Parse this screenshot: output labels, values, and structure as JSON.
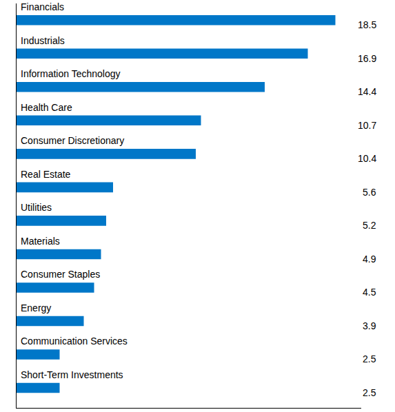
{
  "chart_data": {
    "type": "bar",
    "orientation": "horizontal",
    "categories": [
      "Financials",
      "Industrials",
      "Information Technology",
      "Health Care",
      "Consumer Discretionary",
      "Real Estate",
      "Utilities",
      "Materials",
      "Consumer Staples",
      "Energy",
      "Communication Services",
      "Short-Term Investments"
    ],
    "values": [
      18.5,
      16.9,
      14.4,
      10.7,
      10.4,
      5.6,
      5.2,
      4.9,
      4.5,
      3.9,
      2.5,
      2.5
    ],
    "color": "#0077c8",
    "xlim": [
      0,
      20
    ],
    "data_labels": true,
    "tick_labels": false,
    "grid": false
  }
}
